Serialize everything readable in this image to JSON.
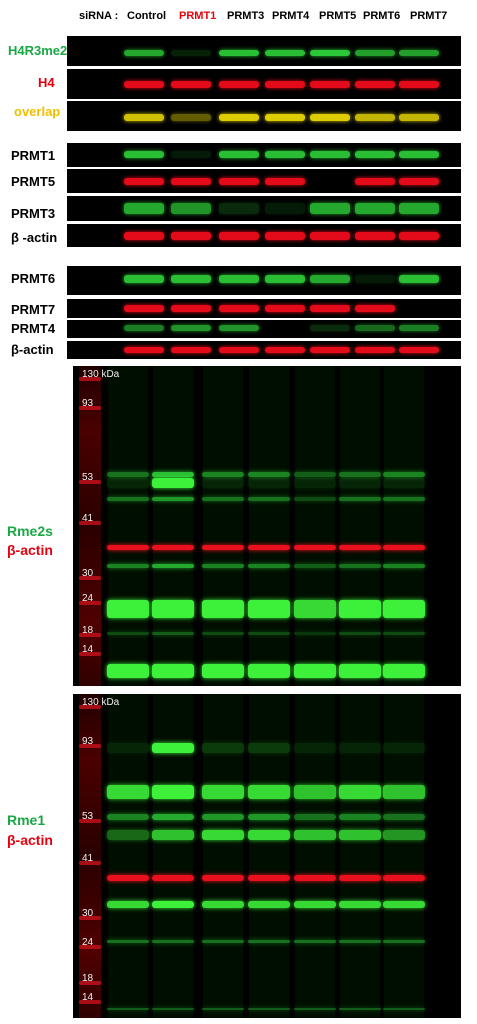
{
  "header": {
    "sirna_label": "siRNA :",
    "lanes": [
      "Control",
      "PRMT1",
      "PRMT3",
      "PRMT4",
      "PRMT5",
      "PRMT6",
      "PRMT7"
    ],
    "highlight_color": "#e8000f"
  },
  "blots": [
    {
      "id": "h4r3me2a",
      "label": "H4R3me2a",
      "label_color": "#1aa845",
      "band_color": "#2ed33a",
      "intensity": [
        0.8,
        0.15,
        0.9,
        0.9,
        0.95,
        0.75,
        0.75
      ]
    },
    {
      "id": "h4",
      "label": "H4",
      "label_color": "#e8000f",
      "band_color": "#e30a1a",
      "intensity": [
        1,
        1,
        1,
        1,
        1,
        1,
        1
      ]
    },
    {
      "id": "overlap",
      "label": "overlap",
      "label_color": "#f0c000",
      "band_color": "#f5e400",
      "intensity": [
        0.85,
        0.4,
        0.9,
        0.9,
        0.9,
        0.8,
        0.8
      ]
    },
    {
      "id": "prmt1",
      "label": "PRMT1",
      "label_color": "#000000",
      "band_color": "#2ed33a",
      "intensity": [
        0.9,
        0.1,
        0.9,
        0.9,
        0.9,
        0.9,
        0.9
      ]
    },
    {
      "id": "prmt5",
      "label": "PRMT5",
      "label_color": "#000000",
      "band_color": "#e30a1a",
      "intensity": [
        1,
        1,
        1,
        1,
        0,
        1,
        1
      ]
    },
    {
      "id": "prmt3",
      "label": "PRMT3",
      "label_color": "#000000",
      "band_color": "#2ed33a",
      "intensity": [
        0.8,
        0.7,
        0.2,
        0.1,
        0.8,
        0.8,
        0.8
      ]
    },
    {
      "id": "bactin1",
      "label": "β -actin",
      "label_color": "#000000",
      "band_color": "#e30a1a",
      "intensity": [
        1,
        1,
        1,
        1,
        1,
        1,
        1
      ]
    },
    {
      "id": "prmt6",
      "label": "PRMT6",
      "label_color": "#000000",
      "band_color": "#2ed33a",
      "intensity": [
        0.9,
        0.9,
        0.9,
        0.9,
        0.8,
        0.1,
        0.9
      ]
    },
    {
      "id": "prmt7",
      "label": "PRMT7",
      "label_color": "#000000",
      "band_color": "#e30a1a",
      "intensity": [
        1,
        1,
        1,
        1,
        1,
        1,
        0
      ]
    },
    {
      "id": "prmt4",
      "label": "PRMT4",
      "label_color": "#000000",
      "band_color": "#2ed33a",
      "intensity": [
        0.6,
        0.7,
        0.7,
        0,
        0.2,
        0.5,
        0.6
      ]
    },
    {
      "id": "bactin2",
      "label": "β-actin",
      "label_color": "#000000",
      "band_color": "#e30a1a",
      "intensity": [
        1,
        1,
        1,
        1,
        1,
        1,
        1
      ]
    }
  ],
  "panels": [
    {
      "id": "rme2s",
      "label_primary": "Rme2s",
      "label_secondary": "β-actin",
      "primary_color": "#1aa845",
      "secondary_color": "#e8000f",
      "markers": [
        "130 kDa",
        "93",
        "53",
        "41",
        "30",
        "24",
        "18",
        "14"
      ]
    },
    {
      "id": "rme1",
      "label_primary": "Rme1",
      "label_secondary": "β-actin",
      "primary_color": "#1aa845",
      "secondary_color": "#e8000f",
      "markers": [
        "130 kDa",
        "93",
        "53",
        "41",
        "30",
        "24",
        "18",
        "14"
      ]
    }
  ]
}
